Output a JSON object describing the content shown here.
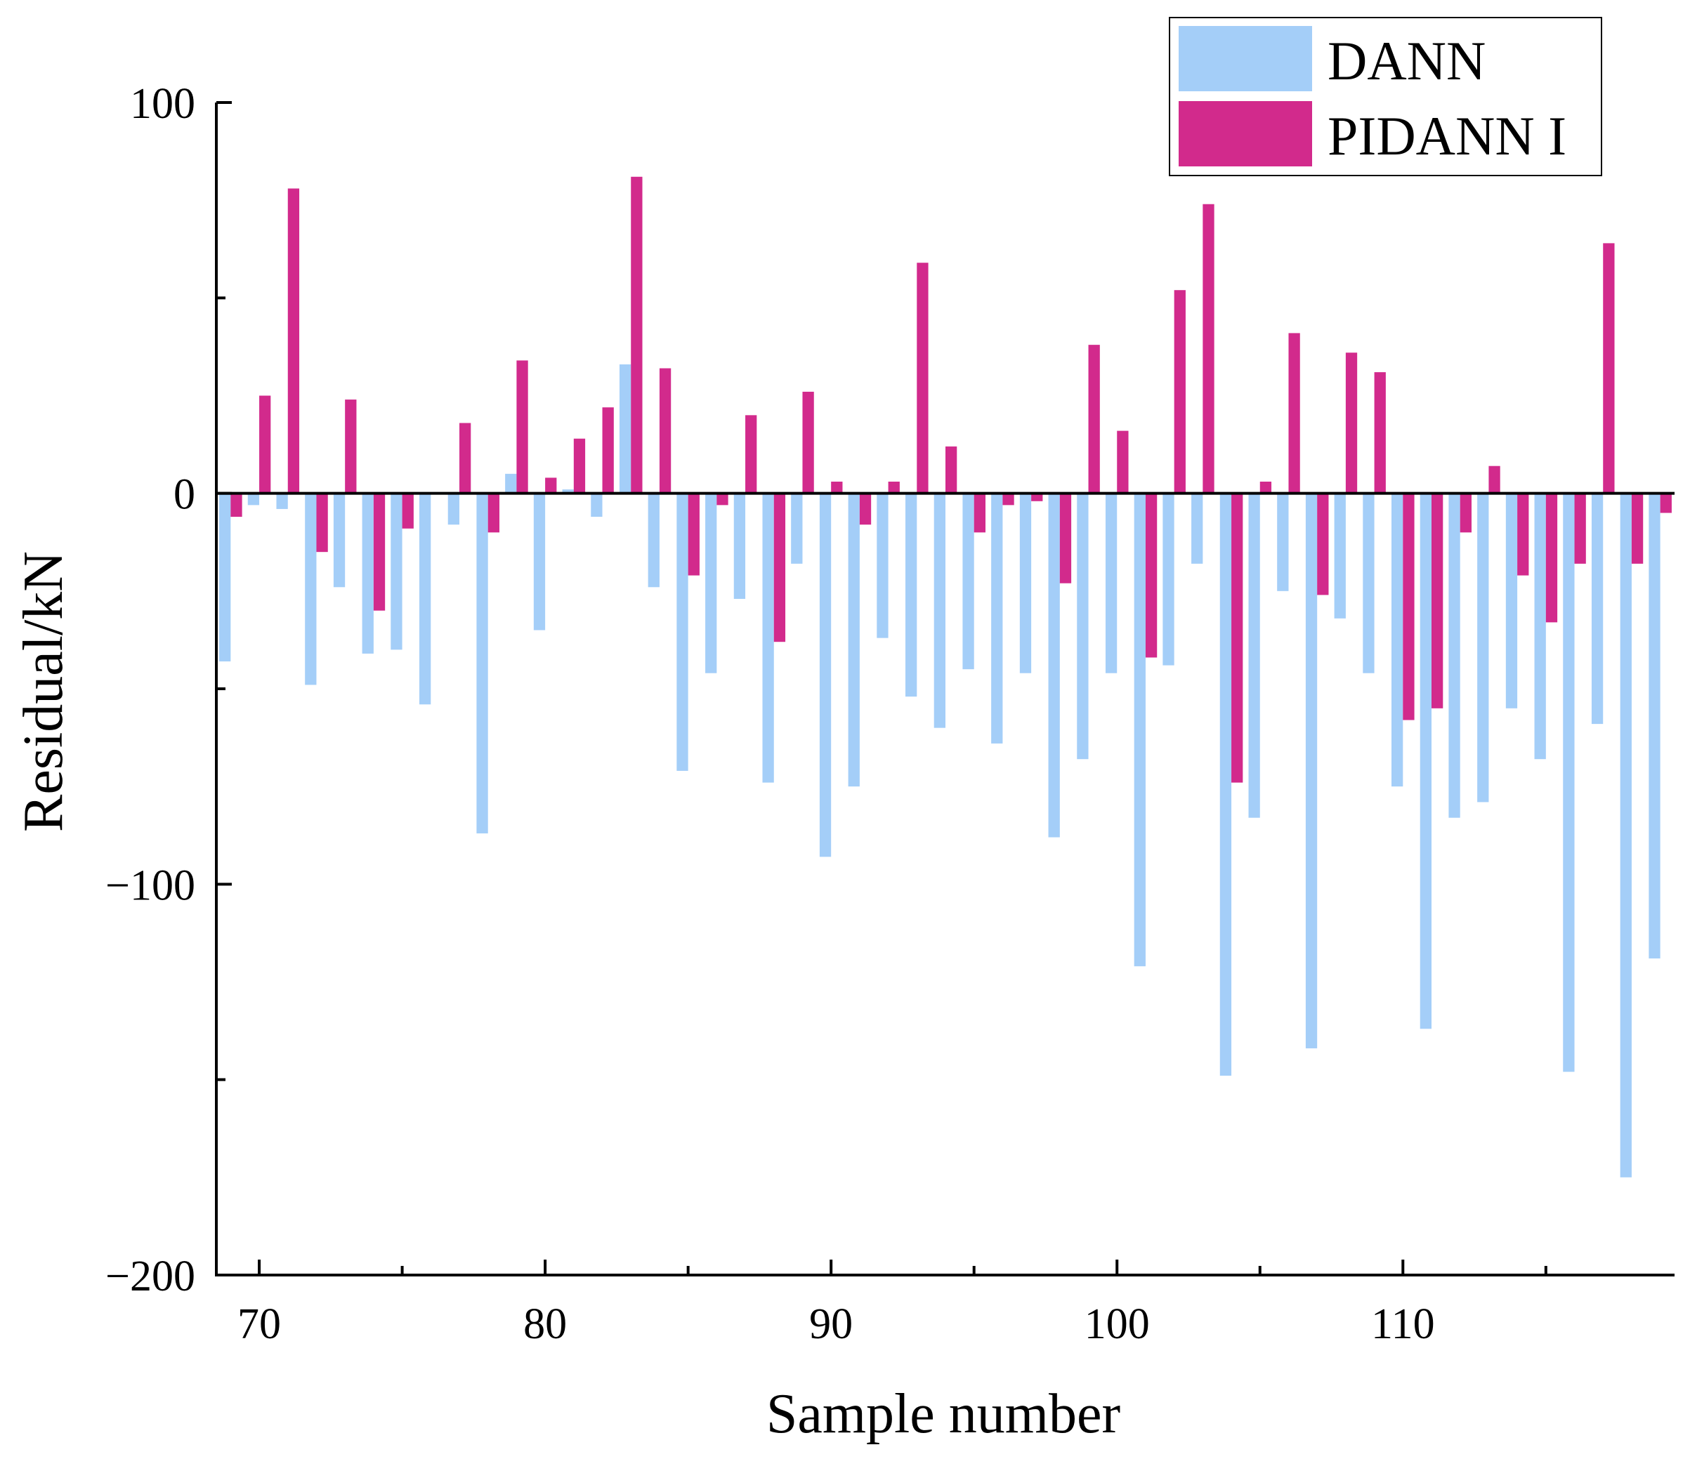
{
  "chart_data": {
    "type": "bar",
    "title": "",
    "xlabel": "Sample number",
    "ylabel": "Residual/kN",
    "xlim": [
      68.5,
      119.5
    ],
    "ylim": [
      -200,
      100
    ],
    "x_ticks": [
      70,
      80,
      90,
      100,
      110
    ],
    "x_tick_labels": [
      "70",
      "80",
      "90",
      "100",
      "110"
    ],
    "x_minor_ticks": [
      75,
      85,
      95,
      105,
      115
    ],
    "y_ticks": [
      100,
      0,
      -100,
      -200
    ],
    "y_tick_labels": [
      "100",
      "0",
      "−100",
      "−200"
    ],
    "y_minor_ticks": [
      50,
      -50,
      -150
    ],
    "zero_line": true,
    "grid": false,
    "legend_position": "top-right",
    "categories": [
      69,
      70,
      71,
      72,
      73,
      74,
      75,
      76,
      77,
      78,
      79,
      80,
      81,
      82,
      83,
      84,
      85,
      86,
      87,
      88,
      89,
      90,
      91,
      92,
      93,
      94,
      95,
      96,
      97,
      98,
      99,
      100,
      101,
      102,
      103,
      104,
      105,
      106,
      107,
      108,
      109,
      110,
      111,
      112,
      113,
      114,
      115,
      116,
      117,
      118,
      119
    ],
    "series": [
      {
        "name": "DANN",
        "color": "#a4cef8",
        "values": [
          -43,
          -3,
          -4,
          -49,
          -24,
          -41,
          -40,
          -54,
          -8,
          -87,
          5,
          -35,
          1,
          -6,
          33,
          -24,
          -71,
          -46,
          -27,
          -74,
          -18,
          -93,
          -75,
          -37,
          -52,
          -60,
          -45,
          -64,
          -46,
          -88,
          -68,
          -46,
          -121,
          -44,
          -18,
          -149,
          -83,
          -25,
          -142,
          -32,
          -46,
          -75,
          -137,
          -83,
          -79,
          -55,
          -68,
          -148,
          -59,
          -175,
          -119
        ]
      },
      {
        "name": "PIDANN I",
        "color": "#d22a8c",
        "values": [
          -6,
          25,
          78,
          -15,
          24,
          -30,
          -9,
          0,
          18,
          -10,
          34,
          4,
          14,
          22,
          81,
          32,
          -21,
          -3,
          20,
          -38,
          26,
          3,
          -8,
          3,
          59,
          12,
          -10,
          -3,
          -2,
          -23,
          38,
          16,
          -42,
          52,
          74,
          -74,
          3,
          41,
          -26,
          36,
          31,
          -58,
          -55,
          -10,
          7,
          -21,
          -33,
          -18,
          64,
          -18,
          -5
        ]
      }
    ]
  }
}
